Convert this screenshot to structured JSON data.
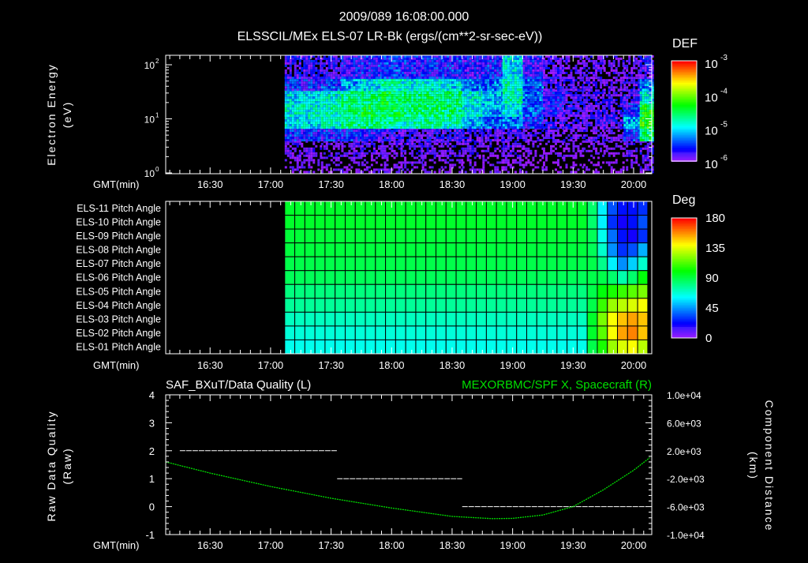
{
  "header": {
    "datetime": "2009/089 16:08:00.000",
    "title": "ELSSCIL/MEx ELS-07 LR-Bk  (ergs/(cm**2-sr-sec-eV))"
  },
  "time_axis": {
    "label": "GMT(min)",
    "start_min": 968,
    "end_min": 1209,
    "ticks": [
      {
        "m": 990,
        "label": "16:30"
      },
      {
        "m": 1020,
        "label": "17:00"
      },
      {
        "m": 1050,
        "label": "17:30"
      },
      {
        "m": 1080,
        "label": "18:00"
      },
      {
        "m": 1110,
        "label": "18:30"
      },
      {
        "m": 1140,
        "label": "19:00"
      },
      {
        "m": 1170,
        "label": "19:30"
      },
      {
        "m": 1200,
        "label": "20:00"
      }
    ]
  },
  "chart_data": [
    {
      "type": "heatmap",
      "name": "spectrogram",
      "ylabel": "Electron Energy",
      "yunit": "(eV)",
      "yscale": "log",
      "ylim": [
        1,
        150
      ],
      "yticks": [
        {
          "v": 100,
          "label": "10",
          "exp": "2"
        },
        {
          "v": 10,
          "label": "10",
          "exp": "1"
        },
        {
          "v": 1,
          "label": "10",
          "exp": "0"
        }
      ],
      "colorbar": {
        "title": "DEF",
        "range_log10": [
          -6,
          -3
        ],
        "ticks": [
          {
            "v": -3,
            "label": "10",
            "exp": "-3"
          },
          {
            "v": -4,
            "label": "10",
            "exp": "-4"
          },
          {
            "v": -5,
            "label": "10",
            "exp": "-5"
          },
          {
            "v": -6,
            "label": "10",
            "exp": "-6"
          }
        ]
      },
      "data_start_min": 1027,
      "time_bins_min": [
        1027,
        1035,
        1045,
        1055,
        1065,
        1075,
        1085,
        1095,
        1105,
        1115,
        1125,
        1135,
        1145,
        1155,
        1165,
        1175,
        1185,
        1195,
        1203,
        1209
      ],
      "energy_bins_eV": [
        1,
        2,
        4,
        7,
        12,
        20,
        35,
        60,
        150
      ],
      "log10_def": [
        [
          -6.1,
          -6.1,
          -6.1,
          -6.1,
          -6.1,
          -6.1,
          -6.1,
          -6.1,
          -6.1,
          -6.1,
          -6.1,
          -6.1,
          -6.2,
          -6.2,
          -6.2,
          -6.2,
          -6.2,
          -6.1,
          -6.0
        ],
        [
          -6.0,
          -6.0,
          -6.0,
          -6.0,
          -6.0,
          -6.0,
          -6.0,
          -6.0,
          -6.0,
          -6.0,
          -6.0,
          -6.0,
          -6.1,
          -6.1,
          -6.1,
          -6.1,
          -6.1,
          -6.0,
          -5.9
        ],
        [
          -5.6,
          -5.6,
          -5.6,
          -5.6,
          -5.7,
          -5.8,
          -5.8,
          -5.8,
          -5.8,
          -5.9,
          -5.9,
          -5.9,
          -6.0,
          -6.0,
          -6.0,
          -6.0,
          -6.0,
          -5.5,
          -4.6
        ],
        [
          -5.0,
          -5.0,
          -4.9,
          -4.7,
          -4.6,
          -4.7,
          -4.8,
          -4.7,
          -4.8,
          -5.2,
          -5.4,
          -5.3,
          -5.6,
          -5.8,
          -5.9,
          -5.9,
          -5.8,
          -5.2,
          -4.3
        ],
        [
          -4.9,
          -4.9,
          -4.8,
          -4.6,
          -4.5,
          -4.5,
          -4.6,
          -4.6,
          -4.6,
          -4.9,
          -5.2,
          -5.0,
          -5.4,
          -5.7,
          -5.8,
          -5.9,
          -5.9,
          -5.6,
          -4.4
        ],
        [
          -5.0,
          -5.0,
          -4.9,
          -4.7,
          -4.6,
          -4.5,
          -4.6,
          -4.6,
          -4.6,
          -4.9,
          -5.1,
          -4.8,
          -5.3,
          -5.7,
          -5.8,
          -5.9,
          -5.9,
          -5.8,
          -5.0
        ],
        [
          -5.6,
          -5.6,
          -5.5,
          -5.2,
          -5.0,
          -4.8,
          -4.9,
          -4.9,
          -5.0,
          -5.3,
          -5.3,
          -4.8,
          -5.4,
          -5.8,
          -5.9,
          -6.0,
          -6.0,
          -5.9,
          -5.3
        ],
        [
          -5.8,
          -5.8,
          -5.8,
          -5.7,
          -5.6,
          -5.5,
          -5.6,
          -5.6,
          -5.6,
          -5.7,
          -5.6,
          -5.0,
          -5.7,
          -5.9,
          -6.0,
          -6.0,
          -6.0,
          -6.0,
          -5.8
        ]
      ]
    },
    {
      "type": "heatmap",
      "name": "pitch-angle",
      "rows": [
        "ELS-11 Pitch Angle",
        "ELS-10 Pitch Angle",
        "ELS-09 Pitch Angle",
        "ELS-08 Pitch Angle",
        "ELS-07 Pitch Angle",
        "ELS-06 Pitch Angle",
        "ELS-05 Pitch Angle",
        "ELS-04 Pitch Angle",
        "ELS-03 Pitch Angle",
        "ELS-02 Pitch Angle",
        "ELS-01 Pitch Angle"
      ],
      "colorbar": {
        "title": "Deg",
        "range": [
          0,
          180
        ],
        "ticks": [
          180,
          135,
          90,
          45,
          0
        ]
      },
      "data_start_min": 1027,
      "bin_min": 5,
      "n_bins": 36,
      "row_base_deg": [
        95,
        95,
        93,
        92,
        90,
        88,
        82,
        78,
        72,
        68,
        65
      ],
      "row_tail_deg": [
        [
          85,
          60,
          35,
          25,
          25,
          30
        ],
        [
          85,
          60,
          30,
          20,
          25,
          35
        ],
        [
          88,
          65,
          40,
          25,
          20,
          30
        ],
        [
          88,
          70,
          45,
          30,
          35,
          50
        ],
        [
          90,
          80,
          60,
          45,
          55,
          70
        ],
        [
          90,
          90,
          85,
          75,
          85,
          100
        ],
        [
          90,
          100,
          105,
          110,
          115,
          120
        ],
        [
          90,
          110,
          125,
          130,
          135,
          140
        ],
        [
          95,
          120,
          140,
          150,
          155,
          150
        ],
        [
          95,
          115,
          140,
          155,
          160,
          150
        ],
        [
          90,
          105,
          125,
          135,
          140,
          130
        ]
      ]
    },
    {
      "type": "line",
      "name": "data-quality-and-position",
      "left_title": "SAF_BXuT/Data Quality (L)",
      "right_title": "MEXORBMC/SPF X, Spacecraft (R)",
      "ylabel_left": "Raw Data Quality",
      "ylabel_left_unit": "(Raw)",
      "ylabel_right": "Component Distance",
      "ylabel_right_unit": "(km)",
      "ylim_left": [
        -1,
        4
      ],
      "ylim_right": [
        -10000,
        10000
      ],
      "yticks_left": [
        "4",
        "3",
        "2",
        "1",
        "0",
        "-1"
      ],
      "yticks_right": [
        "1.0e+04",
        "6.0e+03",
        "2.0e+03",
        "-2.0e+03",
        "-6.0e+03",
        "-1.0e+04"
      ],
      "colors": {
        "quality": "#ffffff",
        "position": "#00e000",
        "title_right": "#00e000"
      },
      "quality_segments": [
        {
          "start_min": 975,
          "end_min": 1053,
          "value": 2
        },
        {
          "start_min": 1053,
          "end_min": 1115,
          "value": 1
        },
        {
          "start_min": 1115,
          "end_min": 1206,
          "value": 0
        }
      ],
      "position_km": [
        [
          968,
          400
        ],
        [
          990,
          -1200
        ],
        [
          1020,
          -3120
        ],
        [
          1050,
          -4800
        ],
        [
          1080,
          -6200
        ],
        [
          1110,
          -7400
        ],
        [
          1130,
          -7720
        ],
        [
          1140,
          -7680
        ],
        [
          1155,
          -7200
        ],
        [
          1170,
          -6000
        ],
        [
          1185,
          -3600
        ],
        [
          1200,
          -800
        ],
        [
          1208,
          1000
        ]
      ]
    }
  ]
}
